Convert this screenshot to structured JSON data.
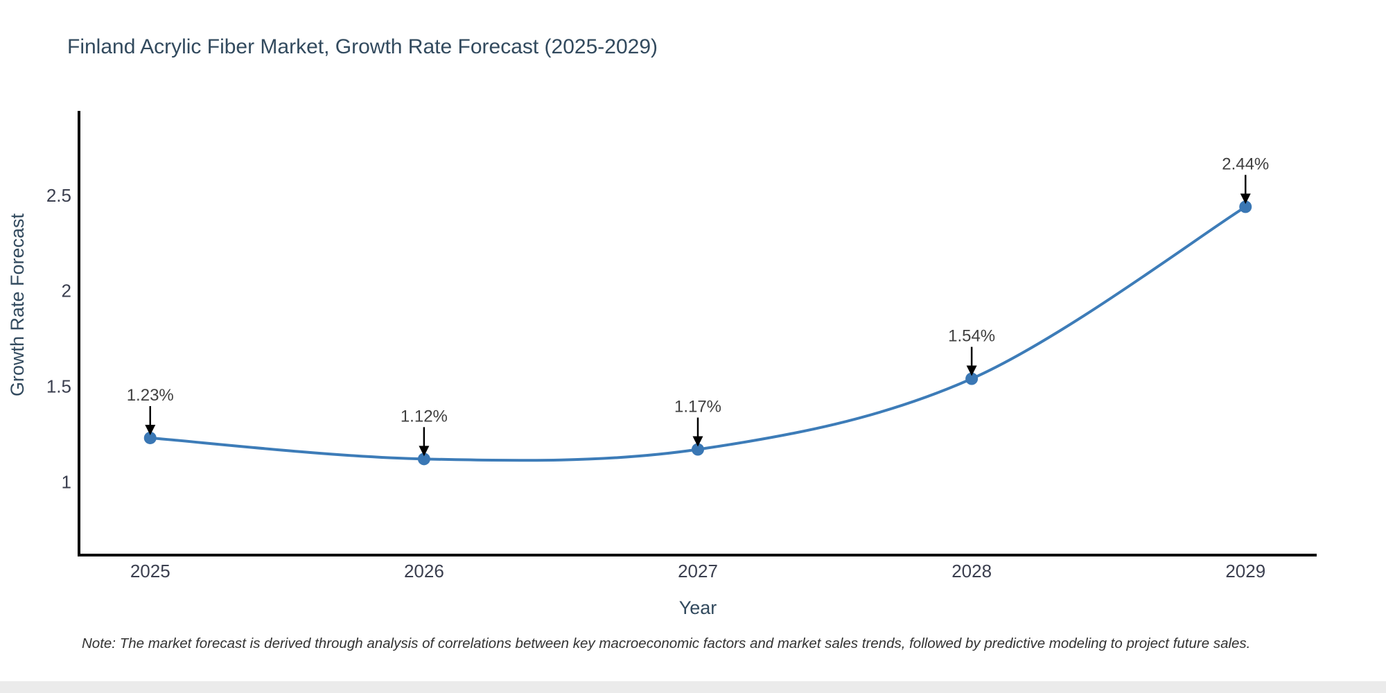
{
  "note": "Note: The market forecast is derived through analysis of correlations between key macroeconomic factors and market sales trends, followed by predictive modeling to project future sales.",
  "chart_data": {
    "type": "line",
    "title": "Finland Acrylic Fiber Market, Growth Rate Forecast (2025-2029)",
    "xlabel": "Year",
    "ylabel": "Growth Rate Forecast",
    "x": [
      2025,
      2026,
      2027,
      2028,
      2029
    ],
    "x_tick_labels": [
      "2025",
      "2026",
      "2027",
      "2028",
      "2029"
    ],
    "series": [
      {
        "name": "Growth Rate Forecast",
        "values": [
          1.23,
          1.12,
          1.17,
          1.54,
          2.44
        ]
      }
    ],
    "point_labels": [
      "1.23%",
      "1.12%",
      "1.17%",
      "1.54%",
      "2.44%"
    ],
    "yticks": [
      1,
      1.5,
      2,
      2.5
    ],
    "y_tick_labels": [
      "1",
      "1.5",
      "2",
      "2.5"
    ],
    "xlim": [
      2024.74,
      2029.26
    ],
    "ylim": [
      0.617,
      2.942
    ],
    "grid": false,
    "legend": "none",
    "curve": "spline",
    "line_color": "#3d7cb8",
    "marker_color": "#3a77b4",
    "marker_size": 9,
    "line_width": 4,
    "axis_color": "#000000",
    "tick_color": "#3b3f4f",
    "label_color": "#324a5e",
    "annotation_arrow_color": "#000000",
    "annotation_text_color": "#404040"
  }
}
